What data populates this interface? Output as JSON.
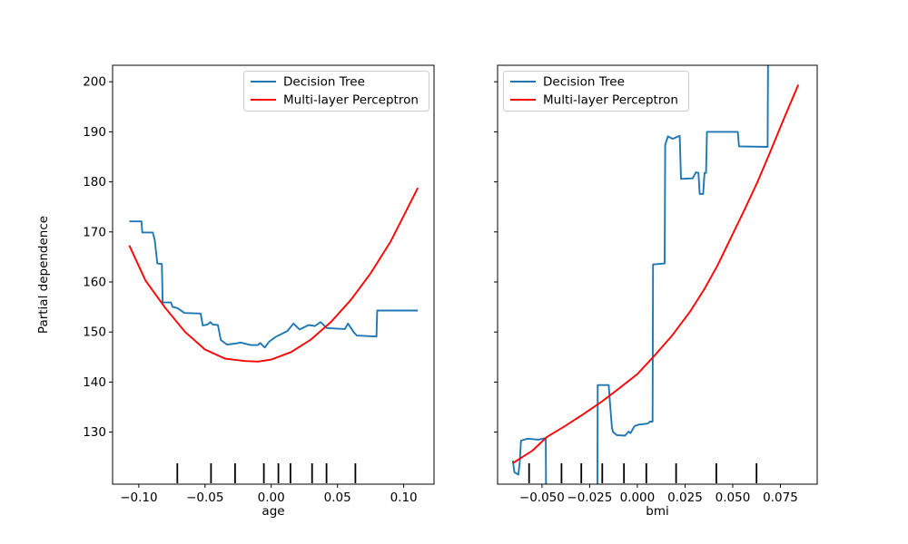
{
  "figure": {
    "background": "#ffffff"
  },
  "ylabel": "Partial dependence",
  "colors": {
    "decision_tree": "#1f77b4",
    "mlp": "#ff0000",
    "axis": "#000000",
    "rug": "#000000",
    "legend_border": "#cccccc",
    "legend_fill": "#ffffff"
  },
  "chart_data": [
    {
      "type": "line",
      "xlabel": "age",
      "ylabel": "Partial dependence",
      "xlim": [
        -0.1198,
        0.1229
      ],
      "ylim": [
        119.6,
        203.3
      ],
      "xticks": [
        -0.1,
        -0.05,
        0.0,
        0.05,
        0.1
      ],
      "xtick_decimals": 2,
      "yticks": [
        130,
        140,
        150,
        160,
        170,
        180,
        190,
        200
      ],
      "show_ytick_labels": true,
      "grid": false,
      "legend_position": "upper-right",
      "rug_x": [
        -0.0709,
        -0.0455,
        -0.0273,
        -0.0056,
        0.0054,
        0.0145,
        0.0308,
        0.0417,
        0.0635
      ],
      "series": [
        {
          "name": "Decision Tree",
          "color": "#1f77b4",
          "x": [
            -0.1072,
            -0.098,
            -0.0974,
            -0.0894,
            -0.088,
            -0.086,
            -0.0837,
            -0.0826,
            -0.082,
            -0.0757,
            -0.0745,
            -0.071,
            -0.0655,
            -0.0533,
            -0.0517,
            -0.0481,
            -0.046,
            -0.0441,
            -0.0403,
            -0.0381,
            -0.0335,
            -0.0271,
            -0.0231,
            -0.0155,
            -0.0101,
            -0.0083,
            -0.0049,
            -0.0015,
            0.0031,
            0.0122,
            0.0168,
            0.0214,
            0.0282,
            0.0329,
            0.0373,
            0.0419,
            0.0556,
            0.0579,
            0.0625,
            0.0647,
            0.0794,
            0.08,
            0.1107
          ],
          "y": [
            172.1,
            172.1,
            169.9,
            169.9,
            168.4,
            163.7,
            163.6,
            163.6,
            155.9,
            155.9,
            155.0,
            154.8,
            153.8,
            153.7,
            151.3,
            151.5,
            152.0,
            151.5,
            151.4,
            148.4,
            147.5,
            147.7,
            147.9,
            147.4,
            147.4,
            147.8,
            146.9,
            148.1,
            149.0,
            150.2,
            151.7,
            150.5,
            151.4,
            151.2,
            152.0,
            150.8,
            150.6,
            151.7,
            149.9,
            149.3,
            149.1,
            154.3,
            154.3
          ]
        },
        {
          "name": "Multi-layer Perceptron",
          "color": "#ff0000",
          "x": [
            -0.1072,
            -0.095,
            -0.08,
            -0.065,
            -0.05,
            -0.035,
            -0.02,
            -0.01,
            0.0,
            0.015,
            0.03,
            0.045,
            0.06,
            0.075,
            0.09,
            0.1,
            0.1107
          ],
          "y": [
            167.3,
            160.3,
            154.8,
            150.0,
            146.5,
            144.7,
            144.2,
            144.1,
            144.5,
            146.0,
            148.5,
            152.0,
            156.4,
            161.7,
            168.0,
            173.2,
            178.8
          ]
        }
      ]
    },
    {
      "type": "line",
      "xlabel": "bmi",
      "ylabel": "Partial dependence",
      "xlim": [
        -0.0733,
        0.0943
      ],
      "ylim": [
        119.6,
        203.3
      ],
      "xticks": [
        -0.05,
        -0.025,
        0.0,
        0.025,
        0.05,
        0.075
      ],
      "xtick_decimals": 3,
      "yticks": [
        130,
        140,
        150,
        160,
        170,
        180,
        190,
        200
      ],
      "show_ytick_labels": false,
      "grid": false,
      "legend_position": "upper-left",
      "rug_x": [
        -0.0568,
        -0.0398,
        -0.0294,
        -0.0184,
        -0.007,
        0.0047,
        0.0203,
        0.0414,
        0.0625
      ],
      "series": [
        {
          "name": "Decision Tree",
          "color": "#1f77b4",
          "x": [
            -0.0653,
            -0.0645,
            -0.0624,
            -0.0617,
            -0.061,
            -0.0575,
            -0.052,
            -0.048,
            -0.0478,
            -0.021,
            -0.0208,
            -0.015,
            -0.0144,
            -0.0133,
            -0.0127,
            -0.0108,
            -0.0065,
            -0.0046,
            -0.0036,
            -0.0015,
            0.0008,
            0.0054,
            0.0066,
            0.008,
            0.0082,
            0.0143,
            0.0146,
            0.016,
            0.0185,
            0.0222,
            0.0229,
            0.029,
            0.0307,
            0.032,
            0.0327,
            0.0345,
            0.0352,
            0.036,
            0.0365,
            0.0527,
            0.0533,
            0.0683,
            0.0686
          ],
          "y": [
            124.3,
            122.0,
            121.5,
            124.0,
            128.3,
            128.7,
            128.5,
            128.8,
            109.0,
            109.0,
            139.4,
            139.4,
            136.0,
            130.8,
            130.0,
            129.4,
            129.3,
            130.1,
            129.8,
            131.2,
            131.5,
            131.7,
            132.1,
            132.1,
            163.5,
            163.7,
            187.4,
            189.1,
            188.6,
            189.2,
            180.6,
            180.7,
            181.9,
            181.8,
            177.6,
            177.6,
            181.8,
            181.8,
            190.0,
            190.0,
            187.1,
            187.0,
            209.0
          ]
        },
        {
          "name": "Multi-layer Perceptron",
          "color": "#ff0000",
          "x": [
            -0.0653,
            -0.055,
            -0.0475,
            -0.038,
            -0.029,
            -0.019,
            -0.01,
            0.0,
            0.0088,
            0.0182,
            0.0275,
            0.035,
            0.042,
            0.049,
            0.056,
            0.063,
            0.07,
            0.077,
            0.0844
          ],
          "y": [
            123.8,
            126.3,
            129.0,
            131.2,
            133.4,
            136.0,
            138.6,
            141.6,
            145.2,
            149.3,
            154.0,
            158.5,
            163.3,
            168.8,
            174.3,
            180.0,
            186.3,
            192.8,
            199.4
          ]
        }
      ]
    }
  ]
}
